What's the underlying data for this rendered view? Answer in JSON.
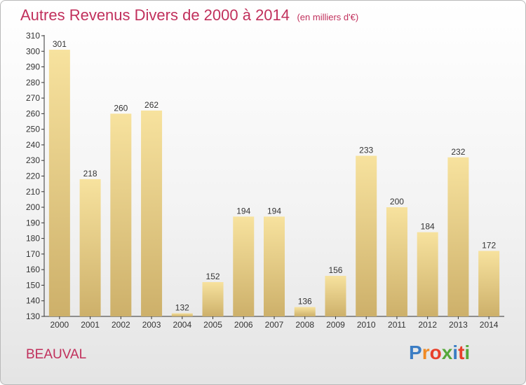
{
  "title": "Autres Revenus Divers de 2000 à 2014",
  "unit": "(en milliers d'€)",
  "place": "BEAUVAL",
  "logo": {
    "text": "Proxiti",
    "colors": [
      "#3b7dc4",
      "#f08a24",
      "#e8402b",
      "#55a83a",
      "#3b7dc4",
      "#e8402b",
      "#55a83a"
    ]
  },
  "colors": {
    "title": "#c1305c",
    "bar_light": "#f7e29e",
    "bar_dark": "#cdb06a",
    "axis": "#333333",
    "grid": "#cccccc"
  },
  "chart_data": {
    "type": "bar",
    "title": "Autres Revenus Divers de 2000 à 2014",
    "categories": [
      "2000",
      "2001",
      "2002",
      "2003",
      "2004",
      "2005",
      "2006",
      "2007",
      "2008",
      "2009",
      "2010",
      "2011",
      "2012",
      "2013",
      "2014"
    ],
    "values": [
      301,
      218,
      260,
      262,
      132,
      152,
      194,
      194,
      136,
      156,
      233,
      200,
      184,
      232,
      172
    ],
    "ylim": [
      130,
      310
    ],
    "ytick_step": 10,
    "xlabel": "",
    "ylabel": "",
    "data_labels": true,
    "grid": false
  }
}
